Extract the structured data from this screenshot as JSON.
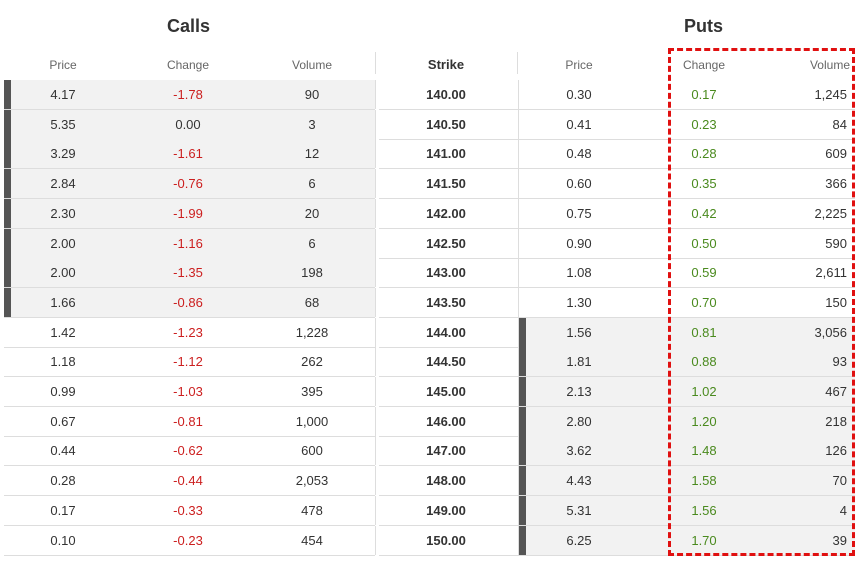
{
  "calls": {
    "title": "Calls",
    "headers": {
      "price": "Price",
      "change": "Change",
      "volume": "Volume"
    }
  },
  "strike_header": "Strike",
  "puts": {
    "title": "Puts",
    "headers": {
      "price": "Price",
      "change": "Change",
      "volume": "Volume"
    }
  },
  "colors": {
    "negative": "#cc1f1f",
    "positive": "#4a8a1e",
    "highlight": "#e01010",
    "in_the_money_marker": "#555555"
  },
  "rows": [
    {
      "calls_in_the_money": true,
      "puts_in_the_money": false,
      "call_price": "4.17",
      "call_change": "-1.78",
      "call_volume": "90",
      "strike": "140.00",
      "put_price": "0.30",
      "put_change": "0.17",
      "put_volume": "1,245"
    },
    {
      "calls_in_the_money": true,
      "puts_in_the_money": false,
      "call_price": "5.35",
      "call_change": "0.00",
      "call_volume": "3",
      "strike": "140.50",
      "put_price": "0.41",
      "put_change": "0.23",
      "put_volume": "84"
    },
    {
      "calls_in_the_money": true,
      "puts_in_the_money": false,
      "call_price": "3.29",
      "call_change": "-1.61",
      "call_volume": "12",
      "strike": "141.00",
      "put_price": "0.48",
      "put_change": "0.28",
      "put_volume": "609"
    },
    {
      "calls_in_the_money": true,
      "puts_in_the_money": false,
      "call_price": "2.84",
      "call_change": "-0.76",
      "call_volume": "6",
      "strike": "141.50",
      "put_price": "0.60",
      "put_change": "0.35",
      "put_volume": "366"
    },
    {
      "calls_in_the_money": true,
      "puts_in_the_money": false,
      "call_price": "2.30",
      "call_change": "-1.99",
      "call_volume": "20",
      "strike": "142.00",
      "put_price": "0.75",
      "put_change": "0.42",
      "put_volume": "2,225"
    },
    {
      "calls_in_the_money": true,
      "puts_in_the_money": false,
      "call_price": "2.00",
      "call_change": "-1.16",
      "call_volume": "6",
      "strike": "142.50",
      "put_price": "0.90",
      "put_change": "0.50",
      "put_volume": "590"
    },
    {
      "calls_in_the_money": true,
      "puts_in_the_money": false,
      "call_price": "2.00",
      "call_change": "-1.35",
      "call_volume": "198",
      "strike": "143.00",
      "put_price": "1.08",
      "put_change": "0.59",
      "put_volume": "2,611"
    },
    {
      "calls_in_the_money": true,
      "puts_in_the_money": false,
      "call_price": "1.66",
      "call_change": "-0.86",
      "call_volume": "68",
      "strike": "143.50",
      "put_price": "1.30",
      "put_change": "0.70",
      "put_volume": "150"
    },
    {
      "calls_in_the_money": false,
      "puts_in_the_money": true,
      "call_price": "1.42",
      "call_change": "-1.23",
      "call_volume": "1,228",
      "strike": "144.00",
      "put_price": "1.56",
      "put_change": "0.81",
      "put_volume": "3,056"
    },
    {
      "calls_in_the_money": false,
      "puts_in_the_money": true,
      "call_price": "1.18",
      "call_change": "-1.12",
      "call_volume": "262",
      "strike": "144.50",
      "put_price": "1.81",
      "put_change": "0.88",
      "put_volume": "93"
    },
    {
      "calls_in_the_money": false,
      "puts_in_the_money": true,
      "call_price": "0.99",
      "call_change": "-1.03",
      "call_volume": "395",
      "strike": "145.00",
      "put_price": "2.13",
      "put_change": "1.02",
      "put_volume": "467"
    },
    {
      "calls_in_the_money": false,
      "puts_in_the_money": true,
      "call_price": "0.67",
      "call_change": "-0.81",
      "call_volume": "1,000",
      "strike": "146.00",
      "put_price": "2.80",
      "put_change": "1.20",
      "put_volume": "218"
    },
    {
      "calls_in_the_money": false,
      "puts_in_the_money": true,
      "call_price": "0.44",
      "call_change": "-0.62",
      "call_volume": "600",
      "strike": "147.00",
      "put_price": "3.62",
      "put_change": "1.48",
      "put_volume": "126"
    },
    {
      "calls_in_the_money": false,
      "puts_in_the_money": true,
      "call_price": "0.28",
      "call_change": "-0.44",
      "call_volume": "2,053",
      "strike": "148.00",
      "put_price": "4.43",
      "put_change": "1.58",
      "put_volume": "70"
    },
    {
      "calls_in_the_money": false,
      "puts_in_the_money": true,
      "call_price": "0.17",
      "call_change": "-0.33",
      "call_volume": "478",
      "strike": "149.00",
      "put_price": "5.31",
      "put_change": "1.56",
      "put_volume": "4"
    },
    {
      "calls_in_the_money": false,
      "puts_in_the_money": true,
      "call_price": "0.10",
      "call_change": "-0.23",
      "call_volume": "454",
      "strike": "150.00",
      "put_price": "6.25",
      "put_change": "1.70",
      "put_volume": "39"
    }
  ]
}
